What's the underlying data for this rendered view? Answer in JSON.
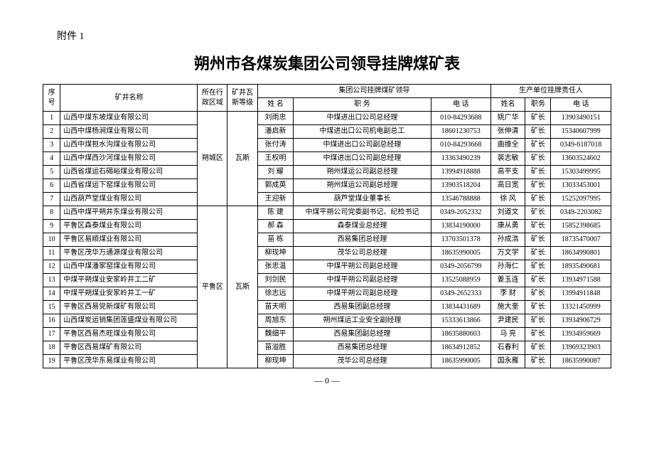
{
  "attachment": "附件 1",
  "title": "朔州市各煤炭集团公司领导挂牌煤矿表",
  "pagenum": "— 0 —",
  "header": {
    "seq": "序号",
    "mine": "矿井名称",
    "region": "所在行政区域",
    "gas": "矿井瓦斯等级",
    "group_leader": "集团公司挂牌煤矿领导",
    "prod_leader": "生产单位挂牌责任人",
    "name": "姓  名",
    "pos": "职    务",
    "tel": "电    话",
    "pname": "姓名",
    "ppos": "职务",
    "ptel": "电    话"
  },
  "region1": "朔城区",
  "region2": "平鲁区",
  "gas": "瓦斯",
  "rows": [
    {
      "n": "1",
      "mine": "山西中煤东坡煤业有限公司",
      "gn": "刘雨忠",
      "gp": "中煤进出口公司总经理",
      "gt": "010-84293688",
      "pn": "姚广华",
      "pp": "矿长",
      "pt": "13903490151"
    },
    {
      "n": "2",
      "mine": "山西中煤杨涧煤业有限公司",
      "gn": "潘启新",
      "gp": "中煤进出口公司机电副总工",
      "gt": "18601230753",
      "pn": "张伸清",
      "pp": "矿长",
      "pt": "15340607999"
    },
    {
      "n": "3",
      "mine": "山西中煤担水沟煤业有限公司",
      "gn": "张付涛",
      "gp": "中煤进出口公司副总经理",
      "gt": "010-84293668",
      "pn": "曲维全",
      "pp": "矿长",
      "pt": "0349-6187018"
    },
    {
      "n": "4",
      "mine": "山西中煤西沙河煤业有限公司",
      "gn": "王权明",
      "gp": "中煤进出口公司副总经理",
      "gt": "13363490239",
      "pn": "裴志敏",
      "pp": "矿长",
      "pt": "13603524602"
    },
    {
      "n": "5",
      "mine": "山西省煤运石碣峪煤业有限公司",
      "gn": "刘  耀",
      "gp": "朔州煤运公司副总经理",
      "gt": "13994918888",
      "pn": "高平支",
      "pp": "矿长",
      "pt": "15303499995"
    },
    {
      "n": "6",
      "mine": "山西省煤运下窑煤业有限公司",
      "gn": "郭成英",
      "gp": "朔州煤运公司副总经理",
      "gt": "13903518204",
      "pn": "高日宽",
      "pp": "矿长",
      "pt": "13033453001"
    },
    {
      "n": "7",
      "mine": "山西葫芦堂煤业有限公司",
      "gn": "王迎新",
      "gp": "葫芦堂煤业董事长",
      "gt": "13546788888",
      "pn": "徐  风",
      "pp": "矿长",
      "pt": "15252097995"
    },
    {
      "n": "8",
      "mine": "山西中煤平朔井东煤业有限公司",
      "gn": "陈  建",
      "gp": "中煤平朔公司党委副书记、纪检书记",
      "gt": "0349-2052332",
      "pn": "刘道文",
      "pp": "矿长",
      "pt": "0349-2203082"
    },
    {
      "n": "9",
      "mine": "平鲁区森泰煤业有限公司",
      "gn": "郝  森",
      "gp": "森泰煤业总经理",
      "gt": "13834190000",
      "pn": "康从勇",
      "pp": "矿长",
      "pt": "15852398685"
    },
    {
      "n": "10",
      "mine": "平鲁区易顺煤业有限公司",
      "gn": "苗  栋",
      "gp": "西易集团总经理",
      "gt": "13703501378",
      "pn": "孙成浩",
      "pp": "矿长",
      "pt": "18735470007"
    },
    {
      "n": "11",
      "mine": "平鲁区茂华万通源煤业有限公司",
      "gn": "柳现坤",
      "gp": "茂华公司总经理",
      "gt": "18635990005",
      "pn": "万文学",
      "pp": "矿长",
      "pt": "18634990801"
    },
    {
      "n": "12",
      "mine": "山西中煤潘家窑煤业有限公司",
      "gn": "张忠温",
      "gp": "中煤平朔公司副总经理",
      "gt": "0349-2056799",
      "pn": "孙海仁",
      "pp": "矿长",
      "pt": "18935490681"
    },
    {
      "n": "13",
      "mine": "中煤平朔煤业安家岭井工二矿",
      "gn": "刘剑民",
      "gp": "中煤平朔公司副总经理",
      "gt": "13525088959",
      "pn": "姜玉连",
      "pp": "矿长",
      "pt": "13934971588"
    },
    {
      "n": "14",
      "mine": "中煤平朔煤业安家岭井工一矿",
      "gn": "徐志远",
      "gp": "中煤平朔公司副总经理",
      "gt": "0349-2652333",
      "pn": "李  财",
      "pp": "矿长",
      "pt": "13994911848"
    },
    {
      "n": "15",
      "mine": "平鲁区西易党新煤矿有限公司",
      "gn": "苗天明",
      "gp": "西易集团副总经理",
      "gt": "13834431689",
      "pn": "施大奎",
      "pp": "矿长",
      "pt": "13321450999"
    },
    {
      "n": "16",
      "mine": "山西煤炭运销集团莲盛煤业有限公司",
      "gn": "周旭东",
      "gp": "朔州煤运工业安全副经理",
      "gt": "15333613866",
      "pn": "尹建民",
      "pp": "矿长",
      "pt": "13934906729"
    },
    {
      "n": "17",
      "mine": "平鲁区西易杰旺煤业有限公司",
      "gn": "魏细平",
      "gp": "西易集团副总经理",
      "gt": "18635880603",
      "pn": "马  亮",
      "pp": "矿长",
      "pt": "13934959669"
    },
    {
      "n": "18",
      "mine": "平鲁区西易煤矿有限公司",
      "gn": "苗溢胜",
      "gp": "西易集团总经理",
      "gt": "18634912852",
      "pn": "石春利",
      "pp": "矿长",
      "pt": "13969323903"
    },
    {
      "n": "19",
      "mine": "平鲁区茂华东易煤业有限公司",
      "gn": "柳现坤",
      "gp": "茂华公司总经理",
      "gt": "18635990005",
      "pn": "国永雁",
      "pp": "矿长",
      "pt": "18635990087"
    }
  ]
}
